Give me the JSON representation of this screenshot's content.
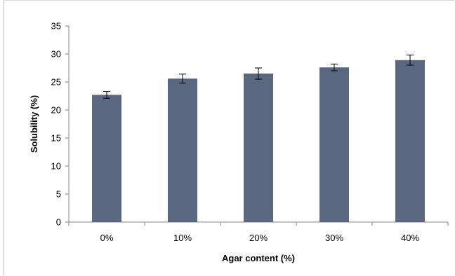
{
  "chart_data": {
    "type": "bar",
    "title": "",
    "xlabel": "Agar content (%)",
    "ylabel": "Solubility (%)",
    "categories": [
      "0%",
      "10%",
      "20%",
      "30%",
      "40%"
    ],
    "values": [
      22.7,
      25.6,
      26.5,
      27.6,
      28.9
    ],
    "errors": [
      0.6,
      0.8,
      1.0,
      0.6,
      0.9
    ],
    "ylim": [
      0,
      35
    ],
    "yticks": [
      0,
      5,
      10,
      15,
      20,
      25,
      30,
      35
    ],
    "grid": false,
    "legend": "none",
    "bar_color": "#596780"
  }
}
